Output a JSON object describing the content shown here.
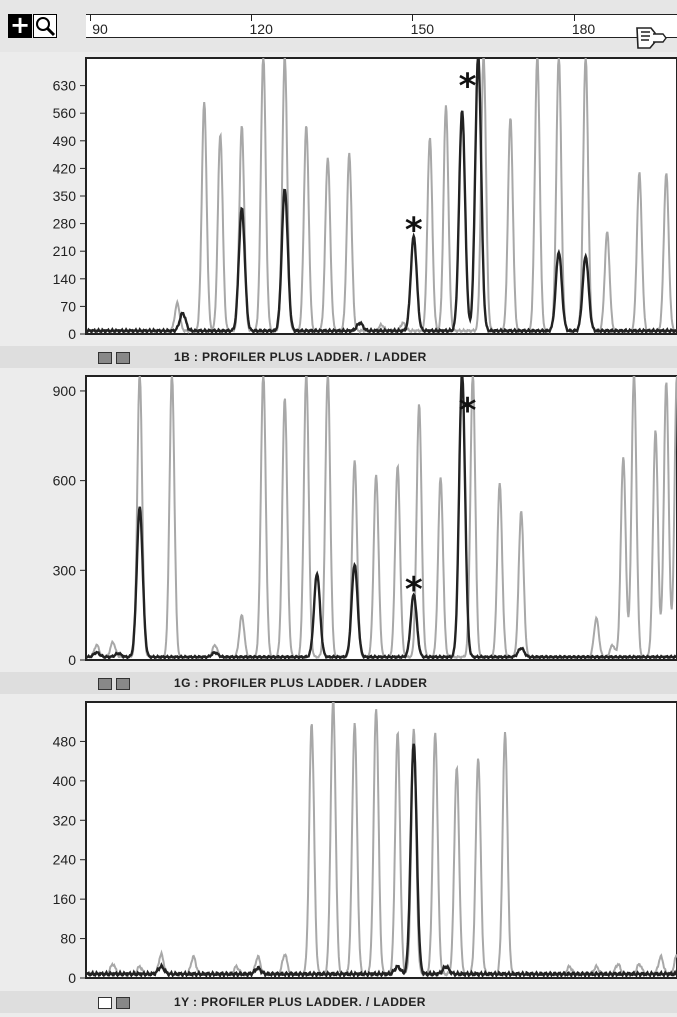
{
  "toolbar": {
    "icons": [
      "plus-icon",
      "magnifier-icon",
      "hand-icon"
    ],
    "scale_ticks": [
      90,
      120,
      150,
      180
    ],
    "scale_range": [
      90,
      200
    ]
  },
  "colors": {
    "trace_dark": "#222222",
    "trace_light": "#a8a8a8",
    "plot_bg": "#ffffff"
  },
  "chart_data": [
    {
      "type": "line",
      "panel_label": "1B : PROFILER PLUS LADDER. / LADDER",
      "xlim": [
        90,
        200
      ],
      "ylim": [
        0,
        700
      ],
      "y_ticks": [
        0,
        70,
        140,
        210,
        280,
        350,
        420,
        490,
        560,
        630
      ],
      "y_tick_labels": [
        "0",
        "70",
        "140",
        "210",
        "280",
        "350",
        "420",
        "490",
        "560",
        "630"
      ],
      "annotations": [
        {
          "text": "*",
          "x": 151,
          "y": 245
        },
        {
          "text": "*",
          "x": 161,
          "y": 610
        }
      ],
      "series": [
        {
          "style": "dark",
          "baseline": 8,
          "peaks": [
            {
              "x": 108,
              "y": 45
            },
            {
              "x": 119,
              "y": 310
            },
            {
              "x": 127,
              "y": 360
            },
            {
              "x": 141,
              "y": 20
            },
            {
              "x": 151,
              "y": 240
            },
            {
              "x": 160,
              "y": 560
            },
            {
              "x": 163,
              "y": 700
            },
            {
              "x": 178,
              "y": 200
            },
            {
              "x": 183,
              "y": 190
            }
          ]
        },
        {
          "style": "light",
          "baseline": 8,
          "peaks": [
            {
              "x": 107,
              "y": 70
            },
            {
              "x": 112,
              "y": 580
            },
            {
              "x": 115,
              "y": 500
            },
            {
              "x": 119,
              "y": 520
            },
            {
              "x": 123,
              "y": 700
            },
            {
              "x": 127,
              "y": 700
            },
            {
              "x": 131,
              "y": 520
            },
            {
              "x": 135,
              "y": 440
            },
            {
              "x": 139,
              "y": 450
            },
            {
              "x": 145,
              "y": 15
            },
            {
              "x": 149,
              "y": 20
            },
            {
              "x": 154,
              "y": 490
            },
            {
              "x": 157,
              "y": 570
            },
            {
              "x": 164,
              "y": 700
            },
            {
              "x": 169,
              "y": 540
            },
            {
              "x": 174,
              "y": 700
            },
            {
              "x": 178,
              "y": 700
            },
            {
              "x": 183,
              "y": 700
            },
            {
              "x": 187,
              "y": 250
            },
            {
              "x": 193,
              "y": 400
            },
            {
              "x": 198,
              "y": 400
            }
          ]
        }
      ]
    },
    {
      "type": "line",
      "panel_label": "1G : PROFILER PLUS LADDER. / LADDER",
      "xlim": [
        90,
        200
      ],
      "ylim": [
        0,
        950
      ],
      "y_ticks": [
        0,
        300,
        600,
        900
      ],
      "y_tick_labels": [
        "0",
        "300",
        "600",
        "900"
      ],
      "annotations": [
        {
          "text": "*",
          "x": 151,
          "y": 210
        },
        {
          "text": "*",
          "x": 161,
          "y": 810
        }
      ],
      "series": [
        {
          "style": "dark",
          "baseline": 10,
          "peaks": [
            {
              "x": 92,
              "y": 15
            },
            {
              "x": 96,
              "y": 12
            },
            {
              "x": 100,
              "y": 500
            },
            {
              "x": 114,
              "y": 15
            },
            {
              "x": 133,
              "y": 280
            },
            {
              "x": 140,
              "y": 310
            },
            {
              "x": 151,
              "y": 210
            },
            {
              "x": 160,
              "y": 950
            },
            {
              "x": 171,
              "y": 30
            }
          ]
        },
        {
          "style": "light",
          "baseline": 10,
          "peaks": [
            {
              "x": 92,
              "y": 40
            },
            {
              "x": 95,
              "y": 50
            },
            {
              "x": 100,
              "y": 950
            },
            {
              "x": 106,
              "y": 950
            },
            {
              "x": 114,
              "y": 40
            },
            {
              "x": 119,
              "y": 140
            },
            {
              "x": 123,
              "y": 950
            },
            {
              "x": 127,
              "y": 870
            },
            {
              "x": 131,
              "y": 950
            },
            {
              "x": 135,
              "y": 950
            },
            {
              "x": 140,
              "y": 660
            },
            {
              "x": 144,
              "y": 610
            },
            {
              "x": 148,
              "y": 640
            },
            {
              "x": 152,
              "y": 850
            },
            {
              "x": 156,
              "y": 600
            },
            {
              "x": 162,
              "y": 950
            },
            {
              "x": 167,
              "y": 580
            },
            {
              "x": 171,
              "y": 490
            },
            {
              "x": 185,
              "y": 130
            },
            {
              "x": 188,
              "y": 40
            },
            {
              "x": 190,
              "y": 670
            },
            {
              "x": 192,
              "y": 950
            },
            {
              "x": 196,
              "y": 760
            },
            {
              "x": 198,
              "y": 920
            },
            {
              "x": 200,
              "y": 950
            }
          ]
        }
      ]
    },
    {
      "type": "line",
      "panel_label": "1Y : PROFILER PLUS LADDER. / LADDER",
      "xlim": [
        90,
        200
      ],
      "ylim": [
        0,
        560
      ],
      "y_ticks": [
        0,
        80,
        160,
        240,
        320,
        400,
        480
      ],
      "y_tick_labels": [
        "0",
        "80",
        "160",
        "240",
        "320",
        "400",
        "480"
      ],
      "annotations": [],
      "series": [
        {
          "style": "dark",
          "baseline": 8,
          "peaks": [
            {
              "x": 104,
              "y": 15
            },
            {
              "x": 122,
              "y": 12
            },
            {
              "x": 148,
              "y": 15
            },
            {
              "x": 151,
              "y": 470
            },
            {
              "x": 157,
              "y": 15
            }
          ]
        },
        {
          "style": "light",
          "baseline": 8,
          "peaks": [
            {
              "x": 95,
              "y": 20
            },
            {
              "x": 100,
              "y": 15
            },
            {
              "x": 104,
              "y": 40
            },
            {
              "x": 110,
              "y": 35
            },
            {
              "x": 118,
              "y": 15
            },
            {
              "x": 122,
              "y": 35
            },
            {
              "x": 127,
              "y": 40
            },
            {
              "x": 132,
              "y": 510
            },
            {
              "x": 136,
              "y": 560
            },
            {
              "x": 140,
              "y": 510
            },
            {
              "x": 144,
              "y": 540
            },
            {
              "x": 148,
              "y": 490
            },
            {
              "x": 151,
              "y": 500
            },
            {
              "x": 155,
              "y": 490
            },
            {
              "x": 159,
              "y": 420
            },
            {
              "x": 163,
              "y": 440
            },
            {
              "x": 168,
              "y": 490
            },
            {
              "x": 180,
              "y": 15
            },
            {
              "x": 185,
              "y": 15
            },
            {
              "x": 189,
              "y": 20
            },
            {
              "x": 193,
              "y": 20
            },
            {
              "x": 197,
              "y": 35
            },
            {
              "x": 200,
              "y": 40
            }
          ]
        }
      ]
    }
  ]
}
